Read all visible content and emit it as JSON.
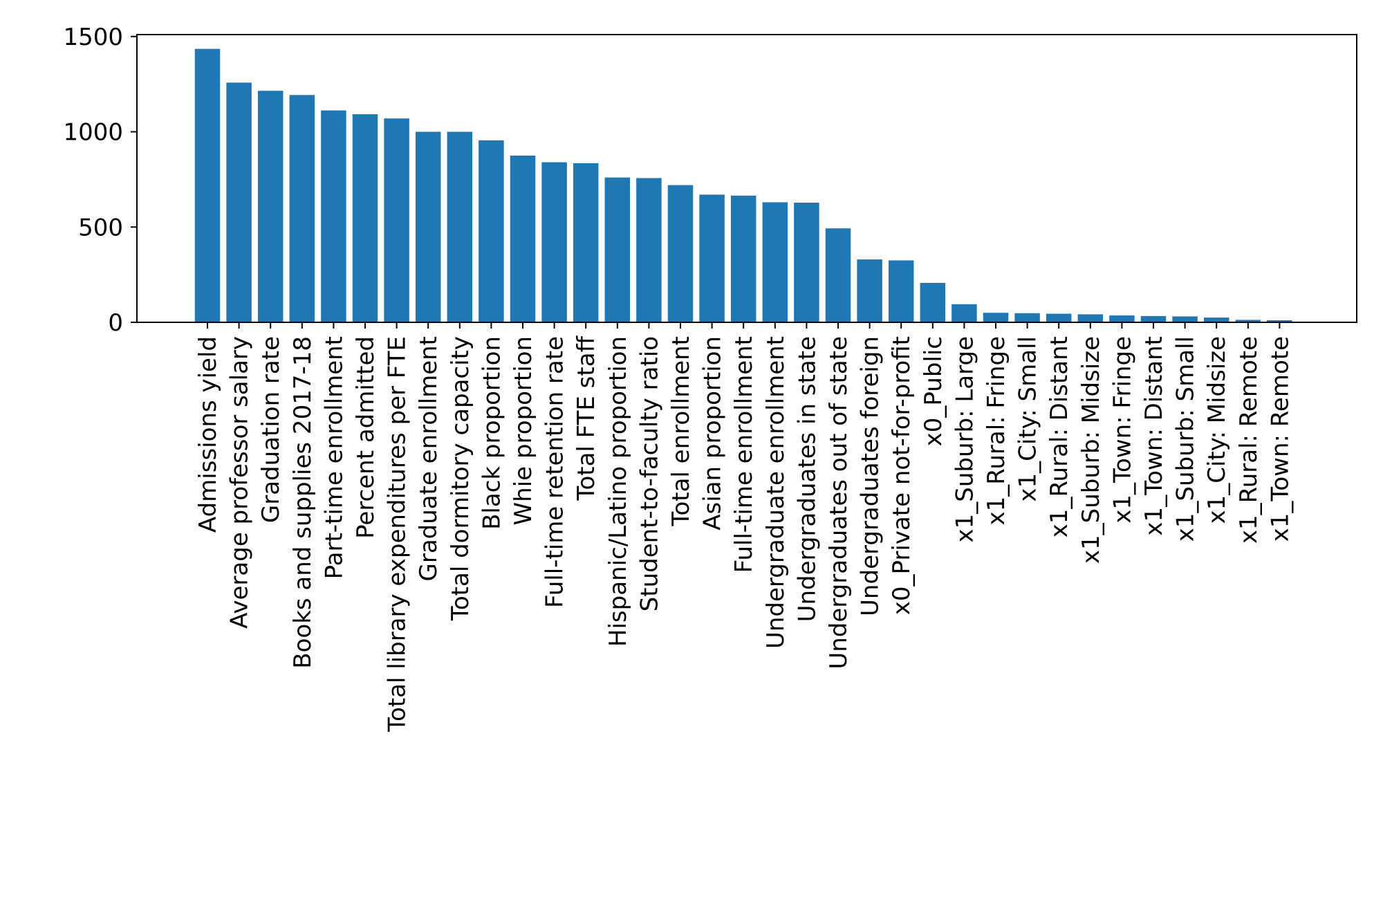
{
  "chart_data": {
    "type": "bar",
    "title": "",
    "xlabel": "",
    "ylabel": "",
    "ylim": [
      0,
      1500
    ],
    "yticks": [
      0,
      500,
      1000,
      1500
    ],
    "grid": false,
    "bar_color": "#1f77b4",
    "categories": [
      "Admissions yield",
      "Average professor salary",
      "Graduation rate",
      "Books and supplies 2017-18",
      "Part-time enrollment",
      "Percent admitted",
      "Total library expenditures per FTE",
      "Graduate enrollment",
      "Total dormitory capacity",
      "Black proportion",
      "Whie proportion",
      "Full-time retention rate",
      "Total FTE staff",
      "Hispanic/Latino proportion",
      "Student-to-faculty ratio",
      "Total enrollment",
      "Asian proportion",
      "Full-time enrollment",
      "Undergraduate enrollment",
      "Undergraduates in state",
      "Undergraduates out of state",
      "Undergraduates foreign",
      "x0_Private not-for-profit",
      "x0_Public",
      "x1_Suburb: Large",
      "x1_Rural: Fringe",
      "x1_City: Small",
      "x1_Rural: Distant",
      "x1_Suburb: Midsize",
      "x1_Town: Fringe",
      "x1_Town: Distant",
      "x1_Suburb: Small",
      "x1_City: Midsize",
      "x1_Rural: Remote",
      "x1_Town: Remote"
    ],
    "values": [
      1435,
      1258,
      1215,
      1193,
      1112,
      1092,
      1070,
      1000,
      1000,
      955,
      875,
      840,
      835,
      760,
      757,
      720,
      670,
      665,
      630,
      628,
      493,
      330,
      325,
      207,
      95,
      50,
      48,
      45,
      42,
      36,
      33,
      31,
      25,
      13,
      11
    ]
  }
}
